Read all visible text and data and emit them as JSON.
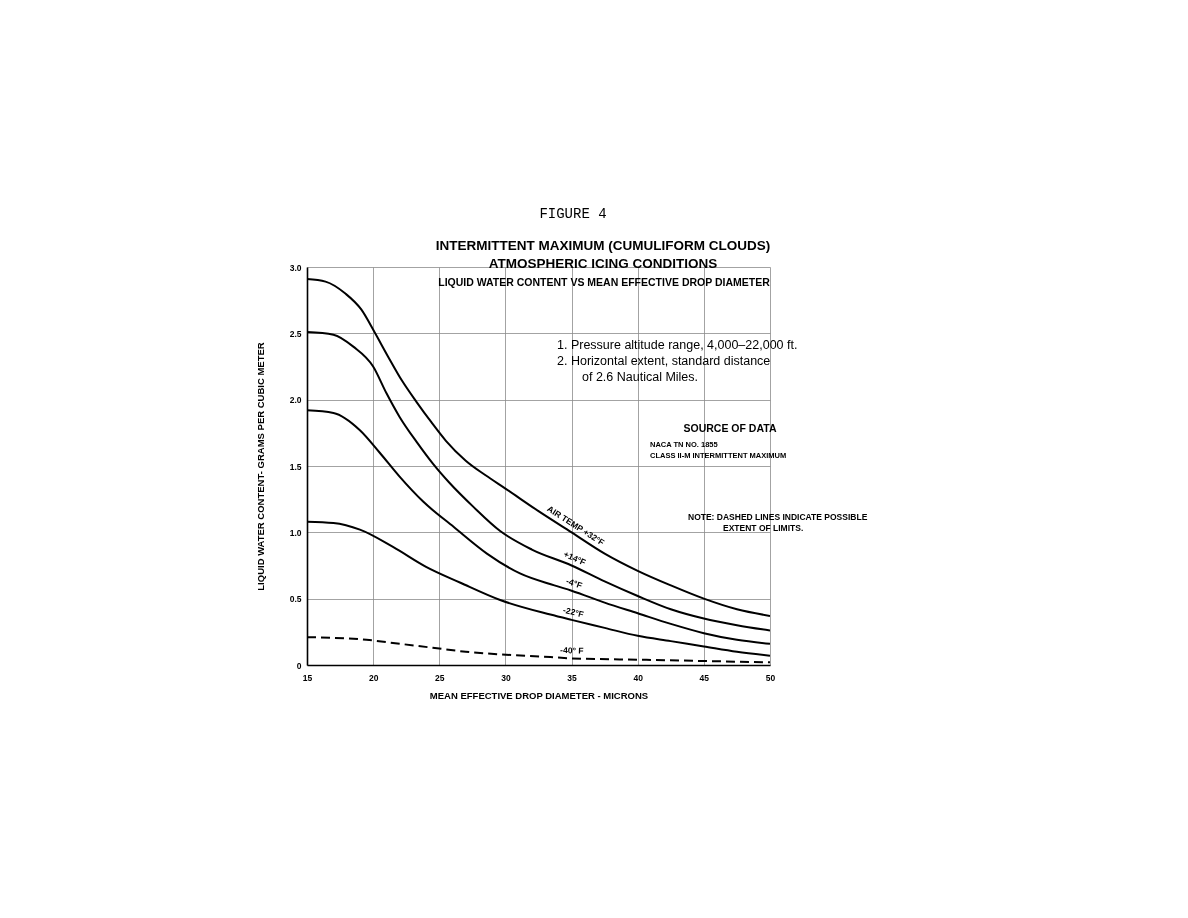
{
  "chart_data": {
    "type": "line",
    "title": "INTERMITTENT MAXIMUM (CUMULIFORM CLOUDS)\nATMOSPHERIC ICING CONDITIONS",
    "subtitle": "LIQUID WATER CONTENT VS MEAN EFFECTIVE DROP DIAMETER",
    "xlabel": "MEAN EFFECTIVE DROP DIAMETER - MICRONS",
    "ylabel": "LIQUID WATER CONTENT- GRAMS PER CUBIC METER",
    "xlim": [
      15,
      50
    ],
    "ylim": [
      0,
      3
    ],
    "xticks": [
      15,
      20,
      25,
      30,
      35,
      40,
      45,
      50
    ],
    "yticks": [
      0,
      0.5,
      {
        "value": 1,
        "label": "1.0"
      },
      1.5,
      {
        "value": 2,
        "label": "2.0"
      },
      2.5,
      {
        "value": 3,
        "label": "3.0"
      }
    ],
    "grid": true,
    "line_style": "solid",
    "series": [
      {
        "name": "AIR TEMP +32°F",
        "color": "#000000",
        "x": [
          15,
          16.4,
          17.9,
          19.1,
          20.1,
          21.1,
          22.2,
          23.3,
          24.4,
          25.5,
          27,
          28.5,
          30,
          32.5,
          35,
          37.5,
          40,
          42.5,
          45,
          47.5,
          50
        ],
        "values": [
          2.91,
          2.89,
          2.8,
          2.68,
          2.51,
          2.33,
          2.14,
          1.98,
          1.83,
          1.69,
          1.54,
          1.43,
          1.33,
          1.16,
          1.0,
          0.84,
          0.71,
          0.6,
          0.5,
          0.42,
          0.37
        ]
      },
      {
        "name": "+14°F",
        "color": "#000000",
        "x": [
          15,
          17,
          18.5,
          20,
          21,
          22,
          23.3,
          24.5,
          25.8,
          27.6,
          29.6,
          32,
          35,
          37.5,
          40,
          42.5,
          45,
          47.5,
          50
        ],
        "values": [
          2.51,
          2.49,
          2.4,
          2.25,
          2.05,
          1.87,
          1.68,
          1.52,
          1.37,
          1.19,
          1.01,
          0.87,
          0.75,
          0.63,
          0.52,
          0.42,
          0.35,
          0.3,
          0.26
        ]
      },
      {
        "name": "-4°F",
        "color": "#000000",
        "x": [
          15,
          17,
          19,
          20.5,
          22,
          23.8,
          26.1,
          28.6,
          31.1,
          33.7,
          35,
          37.5,
          40,
          42.5,
          45,
          47.5,
          50
        ],
        "values": [
          1.92,
          1.9,
          1.77,
          1.6,
          1.42,
          1.23,
          1.04,
          0.84,
          0.69,
          0.6,
          0.56,
          0.47,
          0.39,
          0.31,
          0.24,
          0.19,
          0.16
        ]
      },
      {
        "name": "-22°F",
        "color": "#000000",
        "x": [
          15,
          17,
          19,
          21.5,
          24,
          26.6,
          29.6,
          33.4,
          35,
          37.5,
          40,
          42.5,
          45,
          47.5,
          50
        ],
        "values": [
          1.08,
          1.07,
          1.02,
          0.89,
          0.74,
          0.62,
          0.49,
          0.38,
          0.34,
          0.28,
          0.22,
          0.18,
          0.14,
          0.1,
          0.07
        ]
      },
      {
        "name": "-40° F",
        "color": "#000000",
        "line_style": "dashed",
        "x": [
          15,
          19.5,
          22,
          24.5,
          27,
          29.6,
          33.4,
          35,
          40,
          45,
          50
        ],
        "values": [
          0.21,
          0.19,
          0.16,
          0.13,
          0.1,
          0.08,
          0.06,
          0.05,
          0.04,
          0.03,
          0.02
        ]
      }
    ],
    "annotations": [
      "FIGURE 4",
      "1. Pressure altitude range, 4,000–22,000 ft.",
      "2. Horizontal extent, standard distance",
      "of 2.6 Nautical Miles.",
      "SOURCE OF DATA",
      "NACA TN NO. 1855",
      "CLASS II-M INTERMITTENT MAXIMUM",
      "NOTE: DASHED LINES INDICATE POSSIBLE",
      "EXTENT OF LIMITS."
    ]
  }
}
